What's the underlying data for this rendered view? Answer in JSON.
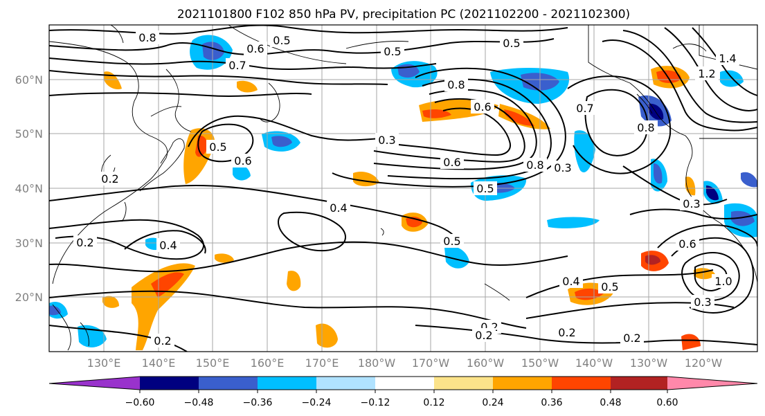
{
  "title": "2021101800 F102 850 hPa PV, precipitation PC (2021102200 - 2021102300)",
  "map": {
    "lon_labels": [
      "130°E",
      "140°E",
      "150°E",
      "160°E",
      "170°E",
      "180°W",
      "170°W",
      "160°W",
      "150°W",
      "140°W",
      "130°W",
      "120°W"
    ],
    "lat_labels": [
      "60°N",
      "50°N",
      "40°N",
      "30°N",
      "20°N"
    ],
    "grid": true
  },
  "contour_labels": [
    "0.8",
    "0.6",
    "0.5",
    "0.5",
    "0.8",
    "0.6",
    "0.5",
    "0.5",
    "0.3",
    "0.6",
    "0.6",
    "0.8",
    "0.3",
    "0.5",
    "0.4",
    "0.5",
    "0.4",
    "0.2",
    "0.2",
    "0.2",
    "0.2",
    "0.2",
    "0.2",
    "0.2",
    "0.4",
    "0.5",
    "0.3",
    "0.6",
    "1.0",
    "1.2",
    "1.4",
    "0.7",
    "0.8",
    "0.7",
    "0.3"
  ],
  "colorbar": {
    "ticks": [
      "−0.60",
      "−0.48",
      "−0.36",
      "−0.24",
      "−0.12",
      "0.12",
      "0.24",
      "0.36",
      "0.48",
      "0.60"
    ],
    "colors": [
      "#9932cc",
      "#000080",
      "#3a5fcd",
      "#00bfff",
      "#b0e2ff",
      "#ffffff",
      "#fce38a",
      "#ffa500",
      "#ff4500",
      "#b22222",
      "#ff88aa"
    ]
  }
}
